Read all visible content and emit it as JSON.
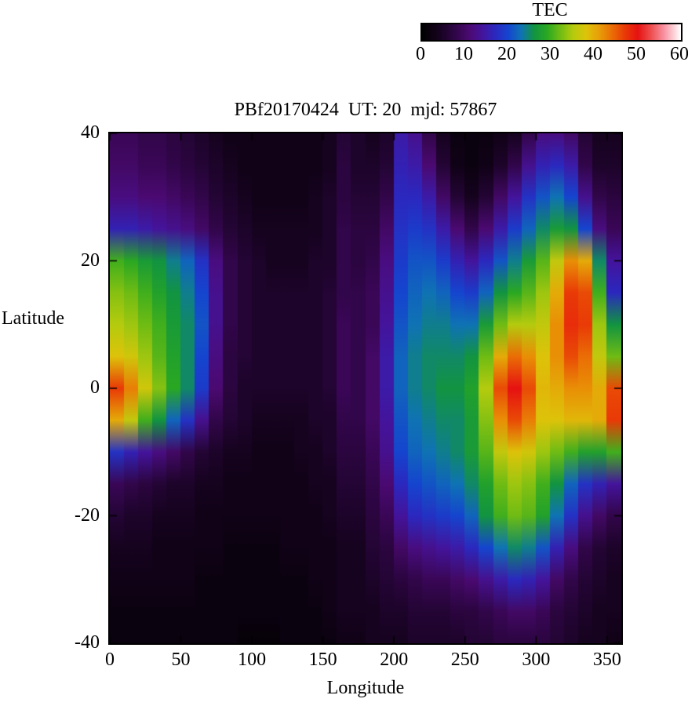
{
  "chart_data": {
    "type": "heatmap",
    "title": "PBf20170424  UT: 20  mjd: 57867",
    "xlabel": "Longitude",
    "ylabel": "Latitude",
    "x_ticks": [
      0,
      50,
      100,
      150,
      200,
      250,
      300,
      350
    ],
    "y_ticks": [
      40,
      20,
      0,
      -20,
      -40
    ],
    "x_range": [
      0,
      360
    ],
    "y_range": [
      -40,
      40
    ],
    "grid": "off",
    "colorbar": {
      "label": "TEC",
      "ticks": [
        0,
        10,
        20,
        30,
        40,
        50,
        60
      ],
      "min": 0,
      "max": 60,
      "position": "top-right"
    },
    "colormap_stops": [
      [
        0,
        "#000000"
      ],
      [
        4,
        "#16031f"
      ],
      [
        8,
        "#32064a"
      ],
      [
        11,
        "#4b0a72"
      ],
      [
        14,
        "#44149c"
      ],
      [
        17,
        "#2b28bf"
      ],
      [
        20,
        "#1545cf"
      ],
      [
        23,
        "#0f73b4"
      ],
      [
        26,
        "#129441"
      ],
      [
        29,
        "#2aa822"
      ],
      [
        32,
        "#6fbc14"
      ],
      [
        35,
        "#b5cb0e"
      ],
      [
        38,
        "#ddc30a"
      ],
      [
        41,
        "#e89f07"
      ],
      [
        44,
        "#ea6e05"
      ],
      [
        47,
        "#e93a07"
      ],
      [
        50,
        "#e61212"
      ],
      [
        53,
        "#ee4d4d"
      ],
      [
        56,
        "#f88f9f"
      ],
      [
        60,
        "#ffffff"
      ]
    ],
    "x_lon": [
      0,
      10,
      20,
      30,
      40,
      50,
      60,
      70,
      80,
      90,
      100,
      110,
      120,
      130,
      140,
      150,
      160,
      170,
      180,
      190,
      200,
      210,
      220,
      230,
      240,
      250,
      260,
      270,
      280,
      290,
      300,
      310,
      320,
      330,
      340,
      350
    ],
    "y_lat": [
      40,
      35,
      30,
      25,
      20,
      15,
      10,
      5,
      0,
      -5,
      -10,
      -15,
      -20,
      -25,
      -30,
      -35,
      -40
    ],
    "values_tec": [
      [
        9,
        9,
        8,
        8,
        7,
        6,
        5,
        4,
        3,
        3,
        3,
        3,
        3,
        3,
        3,
        4,
        6,
        5,
        4,
        5,
        15,
        13,
        8,
        4,
        2,
        2,
        2,
        3,
        4,
        8,
        12,
        12,
        10,
        6,
        4,
        4
      ],
      [
        10,
        10,
        9,
        9,
        8,
        7,
        6,
        5,
        4,
        3,
        3,
        3,
        3,
        3,
        3,
        4,
        7,
        5,
        5,
        6,
        16,
        15,
        11,
        6,
        3,
        2,
        3,
        5,
        8,
        13,
        16,
        17,
        15,
        8,
        5,
        5
      ],
      [
        12,
        12,
        11,
        11,
        10,
        9,
        8,
        6,
        5,
        4,
        3,
        3,
        3,
        3,
        4,
        5,
        7,
        6,
        6,
        8,
        17,
        17,
        15,
        10,
        6,
        4,
        6,
        10,
        14,
        18,
        21,
        23,
        20,
        13,
        8,
        7
      ],
      [
        16,
        16,
        15,
        14,
        13,
        12,
        10,
        8,
        6,
        5,
        4,
        4,
        4,
        4,
        4,
        5,
        8,
        7,
        7,
        10,
        18,
        19,
        18,
        15,
        11,
        8,
        11,
        15,
        19,
        22,
        25,
        27,
        26,
        20,
        12,
        9
      ],
      [
        30,
        29,
        27,
        26,
        24,
        22,
        18,
        12,
        8,
        6,
        5,
        4,
        4,
        4,
        5,
        5,
        8,
        7,
        8,
        12,
        19,
        21,
        21,
        19,
        16,
        14,
        17,
        21,
        24,
        27,
        31,
        36,
        42,
        40,
        25,
        14
      ],
      [
        33,
        32,
        30,
        28,
        26,
        24,
        20,
        13,
        8,
        6,
        5,
        5,
        5,
        5,
        5,
        6,
        8,
        8,
        9,
        13,
        20,
        22,
        23,
        22,
        20,
        19,
        22,
        26,
        29,
        31,
        34,
        40,
        47,
        46,
        30,
        17
      ],
      [
        35,
        34,
        32,
        30,
        27,
        25,
        21,
        13,
        8,
        6,
        5,
        5,
        5,
        5,
        5,
        6,
        9,
        8,
        9,
        14,
        21,
        23,
        24,
        24,
        23,
        23,
        27,
        32,
        35,
        35,
        36,
        42,
        48,
        47,
        34,
        26
      ],
      [
        38,
        37,
        34,
        31,
        28,
        25,
        20,
        12,
        7,
        6,
        5,
        5,
        5,
        5,
        5,
        6,
        9,
        8,
        10,
        15,
        22,
        24,
        25,
        25,
        25,
        26,
        32,
        40,
        44,
        42,
        38,
        42,
        46,
        44,
        36,
        32
      ],
      [
        47,
        43,
        37,
        33,
        29,
        25,
        19,
        11,
        7,
        5,
        5,
        5,
        5,
        5,
        5,
        6,
        9,
        8,
        10,
        15,
        22,
        24,
        25,
        26,
        26,
        28,
        35,
        46,
        50,
        46,
        39,
        40,
        42,
        42,
        40,
        46
      ],
      [
        40,
        36,
        30,
        26,
        22,
        18,
        13,
        8,
        6,
        5,
        4,
        4,
        4,
        4,
        5,
        5,
        8,
        8,
        10,
        14,
        21,
        23,
        24,
        25,
        25,
        27,
        33,
        42,
        46,
        43,
        38,
        38,
        39,
        39,
        40,
        47
      ],
      [
        18,
        16,
        14,
        12,
        10,
        8,
        6,
        5,
        4,
        4,
        3,
        3,
        3,
        4,
        4,
        5,
        7,
        7,
        9,
        13,
        20,
        22,
        23,
        24,
        25,
        27,
        31,
        36,
        38,
        37,
        34,
        32,
        30,
        28,
        28,
        30
      ],
      [
        9,
        8,
        7,
        6,
        5,
        5,
        4,
        4,
        3,
        3,
        3,
        3,
        3,
        3,
        4,
        4,
        6,
        6,
        8,
        11,
        17,
        20,
        21,
        22,
        23,
        25,
        28,
        32,
        34,
        33,
        30,
        26,
        22,
        18,
        16,
        14
      ],
      [
        6,
        5,
        5,
        4,
        4,
        4,
        3,
        3,
        3,
        3,
        3,
        3,
        3,
        3,
        3,
        4,
        5,
        5,
        7,
        9,
        14,
        17,
        18,
        19,
        20,
        22,
        26,
        30,
        32,
        31,
        28,
        23,
        18,
        13,
        10,
        8
      ],
      [
        4,
        4,
        4,
        3,
        3,
        3,
        3,
        3,
        2,
        2,
        2,
        2,
        3,
        3,
        3,
        3,
        4,
        4,
        6,
        7,
        10,
        12,
        13,
        14,
        15,
        17,
        20,
        23,
        25,
        24,
        21,
        16,
        12,
        8,
        6,
        5
      ],
      [
        3,
        3,
        3,
        3,
        3,
        3,
        2,
        2,
        2,
        2,
        2,
        2,
        2,
        2,
        3,
        3,
        4,
        4,
        5,
        6,
        7,
        8,
        9,
        9,
        10,
        11,
        13,
        15,
        17,
        16,
        14,
        10,
        8,
        6,
        5,
        4
      ],
      [
        2,
        2,
        2,
        2,
        2,
        2,
        2,
        2,
        2,
        2,
        2,
        2,
        2,
        2,
        2,
        3,
        4,
        4,
        4,
        5,
        5,
        6,
        6,
        6,
        7,
        7,
        8,
        9,
        10,
        10,
        9,
        7,
        6,
        5,
        4,
        4
      ],
      [
        2,
        2,
        2,
        2,
        2,
        2,
        2,
        2,
        2,
        1,
        1,
        1,
        2,
        2,
        2,
        2,
        3,
        3,
        4,
        4,
        4,
        5,
        5,
        5,
        5,
        6,
        6,
        7,
        7,
        7,
        7,
        6,
        5,
        4,
        4,
        3
      ]
    ]
  }
}
